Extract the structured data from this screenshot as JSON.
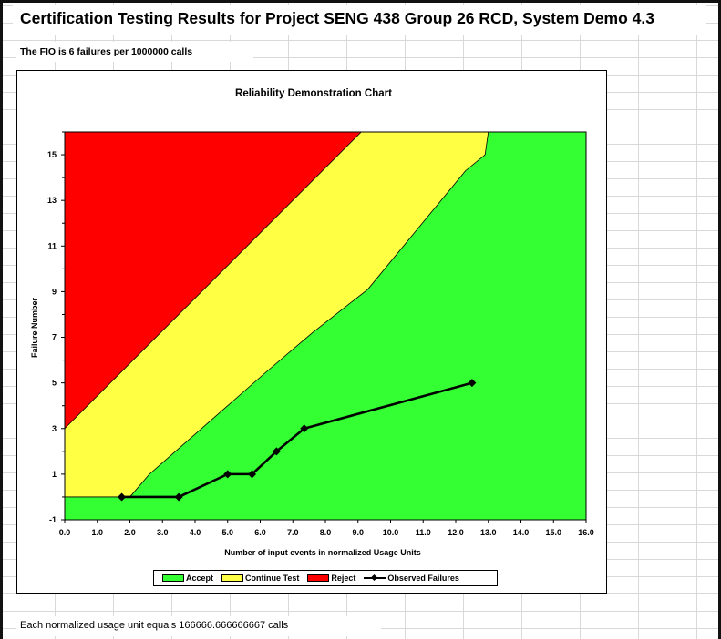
{
  "page": {
    "title": "Certification Testing Results for Project SENG 438 Group 26 RCD, System Demo 4.3",
    "fio_text": "The FIO is 6 failures per 1000000 calls",
    "footer_text": "Each normalized usage unit equals 166666.666666667 calls"
  },
  "chart_data": {
    "type": "line",
    "title": "Reliability Demonstration Chart",
    "xlabel": "Number of input events in normalized Usage Units",
    "ylabel": "Failure Number",
    "xlim": [
      0,
      16
    ],
    "ylim": [
      -1,
      16
    ],
    "x_ticks": [
      "0.0",
      "1.0",
      "2.0",
      "3.0",
      "4.0",
      "5.0",
      "6.0",
      "7.0",
      "8.0",
      "9.0",
      "10.0",
      "11.0",
      "12.0",
      "13.0",
      "14.0",
      "15.0",
      "16.0"
    ],
    "y_ticks": [
      "-1",
      "1",
      "3",
      "5",
      "7",
      "9",
      "11",
      "13",
      "15"
    ],
    "regions": {
      "reject_boundary": [
        [
          0,
          3
        ],
        [
          9.1,
          16
        ]
      ],
      "accept_boundary": [
        [
          0,
          0
        ],
        [
          2.0,
          0
        ],
        [
          2.6,
          1
        ],
        [
          5.0,
          4
        ],
        [
          6.2,
          5.5
        ],
        [
          7.6,
          7.2
        ],
        [
          9.3,
          9.1
        ],
        [
          12.3,
          14.3
        ],
        [
          12.9,
          15
        ],
        [
          13.0,
          16
        ]
      ],
      "colors": {
        "accept": "#33ff33",
        "continue": "#ffff44",
        "reject": "#ff0000"
      }
    },
    "series": [
      {
        "name": "Observed Failures",
        "x": [
          1.75,
          3.5,
          5.0,
          5.75,
          6.5,
          7.35,
          12.5
        ],
        "y": [
          0,
          0,
          1,
          1,
          2,
          3,
          5
        ],
        "color": "#000000"
      }
    ],
    "legend": {
      "placement": "bottom",
      "items": [
        "Accept",
        "Continue Test",
        "Reject",
        "Observed Failures"
      ]
    }
  }
}
